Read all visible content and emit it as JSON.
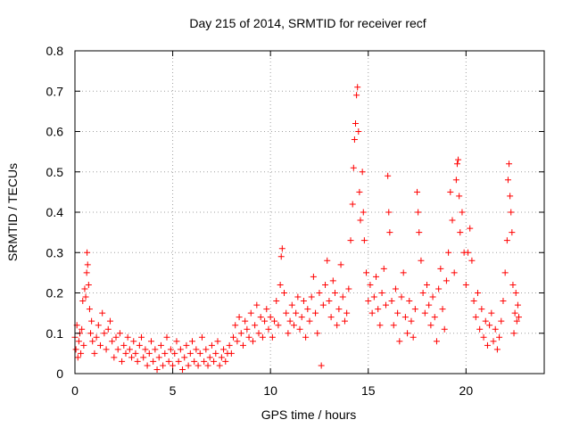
{
  "chart_data": {
    "type": "scatter",
    "title": "Day 215 of 2014, SRMTID for receiver recf",
    "xlabel": "GPS time / hours",
    "ylabel": "SRMTID / TECUs",
    "xlim": [
      0,
      24
    ],
    "ylim": [
      0,
      0.8
    ],
    "x_ticks": [
      0,
      5,
      10,
      15,
      20
    ],
    "x_tick_labels": [
      "0",
      "5",
      "10",
      "15",
      "20"
    ],
    "y_ticks": [
      0,
      0.1,
      0.2,
      0.3,
      0.4,
      0.5,
      0.6,
      0.7,
      0.8
    ],
    "y_tick_labels": [
      "0",
      "0.1",
      "0.2",
      "0.3",
      "0.4",
      "0.5",
      "0.6",
      "0.7",
      "0.8"
    ],
    "grid": true,
    "marker": "+",
    "color": "#ff0000",
    "series": [
      {
        "name": "recf",
        "points": [
          [
            0.0,
            0.09
          ],
          [
            0.05,
            0.06
          ],
          [
            0.1,
            0.12
          ],
          [
            0.15,
            0.04
          ],
          [
            0.2,
            0.08
          ],
          [
            0.25,
            0.1
          ],
          [
            0.3,
            0.05
          ],
          [
            0.35,
            0.11
          ],
          [
            0.4,
            0.18
          ],
          [
            0.45,
            0.07
          ],
          [
            0.5,
            0.21
          ],
          [
            0.55,
            0.19
          ],
          [
            0.6,
            0.25
          ],
          [
            0.62,
            0.3
          ],
          [
            0.65,
            0.27
          ],
          [
            0.7,
            0.22
          ],
          [
            0.75,
            0.16
          ],
          [
            0.8,
            0.1
          ],
          [
            0.85,
            0.13
          ],
          [
            0.9,
            0.08
          ],
          [
            1.0,
            0.05
          ],
          [
            1.1,
            0.09
          ],
          [
            1.2,
            0.12
          ],
          [
            1.3,
            0.07
          ],
          [
            1.4,
            0.15
          ],
          [
            1.5,
            0.1
          ],
          [
            1.6,
            0.06
          ],
          [
            1.7,
            0.11
          ],
          [
            1.8,
            0.13
          ],
          [
            1.9,
            0.08
          ],
          [
            2.0,
            0.04
          ],
          [
            2.1,
            0.09
          ],
          [
            2.2,
            0.06
          ],
          [
            2.3,
            0.1
          ],
          [
            2.4,
            0.03
          ],
          [
            2.5,
            0.07
          ],
          [
            2.6,
            0.05
          ],
          [
            2.7,
            0.09
          ],
          [
            2.8,
            0.06
          ],
          [
            2.9,
            0.04
          ],
          [
            3.0,
            0.08
          ],
          [
            3.1,
            0.05
          ],
          [
            3.2,
            0.03
          ],
          [
            3.3,
            0.07
          ],
          [
            3.4,
            0.09
          ],
          [
            3.5,
            0.04
          ],
          [
            3.6,
            0.06
          ],
          [
            3.7,
            0.02
          ],
          [
            3.8,
            0.05
          ],
          [
            3.9,
            0.08
          ],
          [
            4.0,
            0.03
          ],
          [
            4.1,
            0.06
          ],
          [
            4.2,
            0.01
          ],
          [
            4.3,
            0.04
          ],
          [
            4.4,
            0.07
          ],
          [
            4.5,
            0.02
          ],
          [
            4.6,
            0.05
          ],
          [
            4.7,
            0.09
          ],
          [
            4.8,
            0.03
          ],
          [
            4.9,
            0.06
          ],
          [
            5.0,
            0.02
          ],
          [
            5.1,
            0.05
          ],
          [
            5.2,
            0.08
          ],
          [
            5.3,
            0.03
          ],
          [
            5.4,
            0.06
          ],
          [
            5.5,
            0.01
          ],
          [
            5.6,
            0.04
          ],
          [
            5.7,
            0.07
          ],
          [
            5.8,
            0.02
          ],
          [
            5.9,
            0.05
          ],
          [
            6.0,
            0.08
          ],
          [
            6.1,
            0.03
          ],
          [
            6.2,
            0.06
          ],
          [
            6.3,
            0.02
          ],
          [
            6.4,
            0.05
          ],
          [
            6.5,
            0.09
          ],
          [
            6.6,
            0.03
          ],
          [
            6.7,
            0.06
          ],
          [
            6.8,
            0.02
          ],
          [
            6.9,
            0.04
          ],
          [
            7.0,
            0.07
          ],
          [
            7.1,
            0.03
          ],
          [
            7.2,
            0.05
          ],
          [
            7.3,
            0.08
          ],
          [
            7.4,
            0.02
          ],
          [
            7.5,
            0.04
          ],
          [
            7.6,
            0.06
          ],
          [
            7.7,
            0.03
          ],
          [
            7.8,
            0.05
          ],
          [
            7.9,
            0.07
          ],
          [
            8.0,
            0.05
          ],
          [
            8.1,
            0.09
          ],
          [
            8.2,
            0.12
          ],
          [
            8.3,
            0.08
          ],
          [
            8.4,
            0.14
          ],
          [
            8.5,
            0.1
          ],
          [
            8.6,
            0.07
          ],
          [
            8.7,
            0.13
          ],
          [
            8.8,
            0.11
          ],
          [
            8.9,
            0.09
          ],
          [
            9.0,
            0.15
          ],
          [
            9.1,
            0.08
          ],
          [
            9.2,
            0.12
          ],
          [
            9.3,
            0.17
          ],
          [
            9.4,
            0.1
          ],
          [
            9.5,
            0.14
          ],
          [
            9.6,
            0.09
          ],
          [
            9.7,
            0.13
          ],
          [
            9.8,
            0.16
          ],
          [
            9.9,
            0.11
          ],
          [
            10.0,
            0.14
          ],
          [
            10.1,
            0.09
          ],
          [
            10.2,
            0.13
          ],
          [
            10.3,
            0.18
          ],
          [
            10.4,
            0.12
          ],
          [
            10.5,
            0.22
          ],
          [
            10.55,
            0.29
          ],
          [
            10.6,
            0.31
          ],
          [
            10.7,
            0.2
          ],
          [
            10.8,
            0.15
          ],
          [
            10.9,
            0.1
          ],
          [
            11.0,
            0.13
          ],
          [
            11.1,
            0.17
          ],
          [
            11.2,
            0.12
          ],
          [
            11.3,
            0.15
          ],
          [
            11.4,
            0.19
          ],
          [
            11.5,
            0.11
          ],
          [
            11.6,
            0.14
          ],
          [
            11.7,
            0.18
          ],
          [
            11.8,
            0.09
          ],
          [
            11.9,
            0.16
          ],
          [
            12.0,
            0.13
          ],
          [
            12.1,
            0.19
          ],
          [
            12.2,
            0.24
          ],
          [
            12.3,
            0.15
          ],
          [
            12.4,
            0.1
          ],
          [
            12.5,
            0.2
          ],
          [
            12.6,
            0.02
          ],
          [
            12.7,
            0.17
          ],
          [
            12.8,
            0.22
          ],
          [
            12.9,
            0.28
          ],
          [
            13.0,
            0.18
          ],
          [
            13.1,
            0.14
          ],
          [
            13.2,
            0.23
          ],
          [
            13.3,
            0.2
          ],
          [
            13.4,
            0.12
          ],
          [
            13.5,
            0.16
          ],
          [
            13.6,
            0.27
          ],
          [
            13.7,
            0.19
          ],
          [
            13.8,
            0.13
          ],
          [
            13.9,
            0.15
          ],
          [
            14.0,
            0.21
          ],
          [
            14.1,
            0.33
          ],
          [
            14.2,
            0.42
          ],
          [
            14.25,
            0.51
          ],
          [
            14.3,
            0.58
          ],
          [
            14.35,
            0.62
          ],
          [
            14.4,
            0.69
          ],
          [
            14.45,
            0.71
          ],
          [
            14.5,
            0.6
          ],
          [
            14.55,
            0.45
          ],
          [
            14.6,
            0.38
          ],
          [
            14.7,
            0.5
          ],
          [
            14.75,
            0.4
          ],
          [
            14.8,
            0.33
          ],
          [
            14.9,
            0.25
          ],
          [
            15.0,
            0.18
          ],
          [
            15.1,
            0.22
          ],
          [
            15.2,
            0.15
          ],
          [
            15.3,
            0.19
          ],
          [
            15.4,
            0.24
          ],
          [
            15.5,
            0.16
          ],
          [
            15.6,
            0.12
          ],
          [
            15.7,
            0.2
          ],
          [
            15.8,
            0.26
          ],
          [
            15.9,
            0.17
          ],
          [
            16.0,
            0.49
          ],
          [
            16.05,
            0.4
          ],
          [
            16.1,
            0.35
          ],
          [
            16.2,
            0.18
          ],
          [
            16.3,
            0.12
          ],
          [
            16.4,
            0.21
          ],
          [
            16.5,
            0.15
          ],
          [
            16.6,
            0.08
          ],
          [
            16.7,
            0.19
          ],
          [
            16.8,
            0.25
          ],
          [
            16.9,
            0.14
          ],
          [
            17.0,
            0.1
          ],
          [
            17.1,
            0.18
          ],
          [
            17.2,
            0.13
          ],
          [
            17.3,
            0.09
          ],
          [
            17.4,
            0.16
          ],
          [
            17.5,
            0.45
          ],
          [
            17.55,
            0.4
          ],
          [
            17.6,
            0.35
          ],
          [
            17.7,
            0.28
          ],
          [
            17.8,
            0.2
          ],
          [
            17.9,
            0.15
          ],
          [
            18.0,
            0.22
          ],
          [
            18.1,
            0.17
          ],
          [
            18.2,
            0.12
          ],
          [
            18.3,
            0.19
          ],
          [
            18.4,
            0.14
          ],
          [
            18.5,
            0.08
          ],
          [
            18.6,
            0.21
          ],
          [
            18.7,
            0.26
          ],
          [
            18.8,
            0.16
          ],
          [
            18.9,
            0.11
          ],
          [
            19.0,
            0.23
          ],
          [
            19.1,
            0.3
          ],
          [
            19.2,
            0.45
          ],
          [
            19.3,
            0.38
          ],
          [
            19.4,
            0.25
          ],
          [
            19.5,
            0.48
          ],
          [
            19.55,
            0.52
          ],
          [
            19.6,
            0.53
          ],
          [
            19.65,
            0.44
          ],
          [
            19.7,
            0.35
          ],
          [
            19.8,
            0.4
          ],
          [
            19.9,
            0.3
          ],
          [
            20.0,
            0.22
          ],
          [
            20.1,
            0.3
          ],
          [
            20.2,
            0.36
          ],
          [
            20.3,
            0.28
          ],
          [
            20.4,
            0.18
          ],
          [
            20.5,
            0.14
          ],
          [
            20.6,
            0.2
          ],
          [
            20.7,
            0.11
          ],
          [
            20.8,
            0.16
          ],
          [
            20.9,
            0.09
          ],
          [
            21.0,
            0.13
          ],
          [
            21.1,
            0.07
          ],
          [
            21.2,
            0.12
          ],
          [
            21.3,
            0.15
          ],
          [
            21.4,
            0.08
          ],
          [
            21.5,
            0.11
          ],
          [
            21.6,
            0.06
          ],
          [
            21.7,
            0.09
          ],
          [
            21.8,
            0.13
          ],
          [
            21.9,
            0.18
          ],
          [
            22.0,
            0.25
          ],
          [
            22.1,
            0.33
          ],
          [
            22.15,
            0.48
          ],
          [
            22.2,
            0.52
          ],
          [
            22.25,
            0.44
          ],
          [
            22.3,
            0.4
          ],
          [
            22.35,
            0.35
          ],
          [
            22.4,
            0.22
          ],
          [
            22.45,
            0.1
          ],
          [
            22.5,
            0.15
          ],
          [
            22.55,
            0.2
          ],
          [
            22.6,
            0.13
          ],
          [
            22.65,
            0.17
          ],
          [
            22.7,
            0.14
          ]
        ]
      }
    ]
  }
}
